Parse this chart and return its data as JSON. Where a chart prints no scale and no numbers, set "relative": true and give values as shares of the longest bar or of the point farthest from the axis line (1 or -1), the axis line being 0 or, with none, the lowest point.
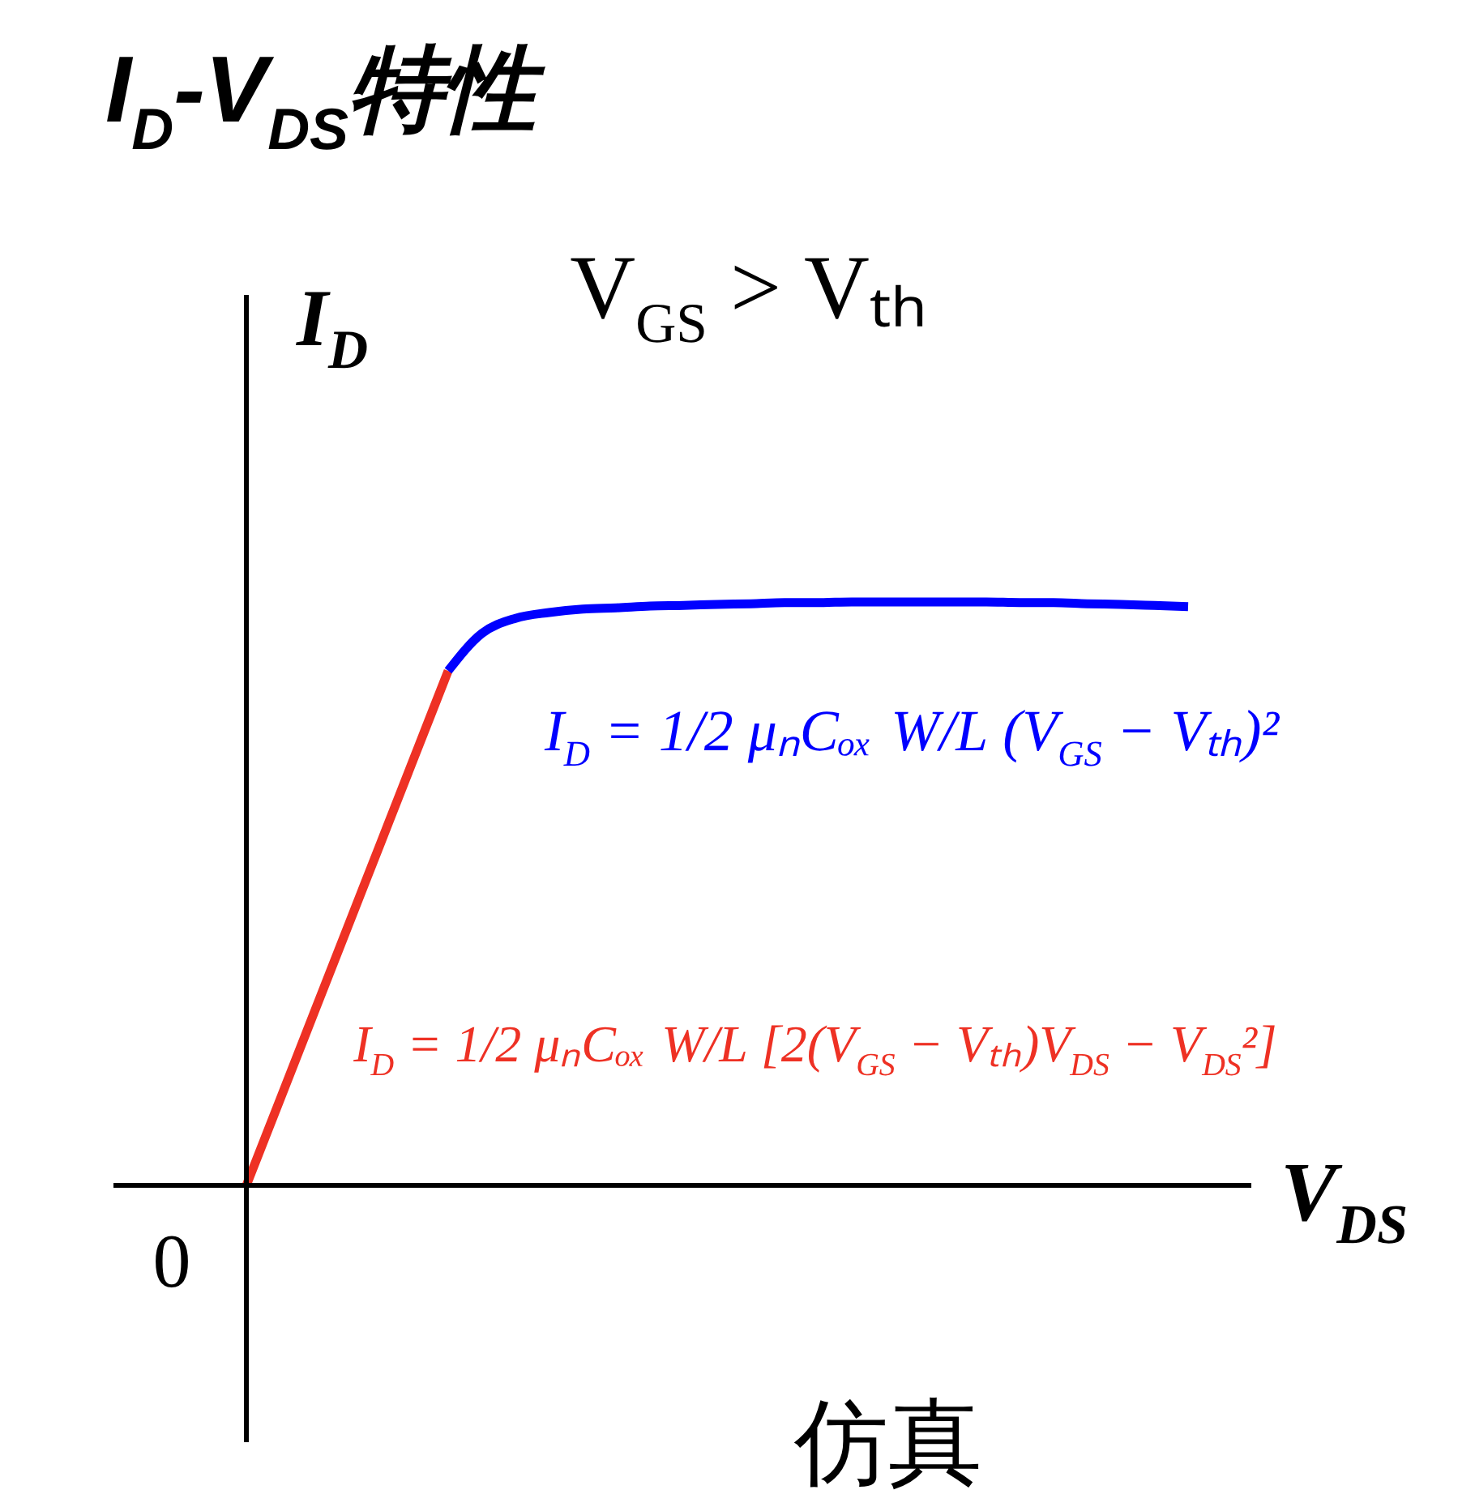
{
  "chart_data": {
    "type": "line",
    "title": "I$_{D}$-V$_{DS}$特性",
    "xlabel": "V$_{DS}$",
    "ylabel": "I$_{D}$",
    "relative": true,
    "categories": [
      null,
      null,
      null,
      null,
      null,
      null,
      null,
      null,
      null,
      null,
      null,
      null,
      null,
      null,
      null,
      null,
      null,
      null,
      null,
      null,
      null,
      null,
      null,
      null,
      null,
      null,
      null,
      null,
      null
    ],
    "series": [
      {
        "color": "#ee3124",
        "values": [
          0,
          0.147,
          0.294,
          0.441,
          0.588,
          0.735,
          0.882,
          null,
          null,
          null,
          null,
          null,
          null,
          null,
          null,
          null,
          null,
          null,
          null,
          null,
          null,
          null,
          null,
          null,
          null,
          null,
          null,
          null,
          null
        ]
      },
      {
        "color": "#0000ff",
        "values": [
          null,
          null,
          null,
          null,
          null,
          null,
          0.882,
          0.946,
          0.972,
          0.982,
          0.988,
          0.99,
          0.993,
          0.994,
          0.996,
          0.997,
          0.999,
          0.999,
          1.0,
          1.0,
          1.0,
          1.0,
          1.0,
          0.999,
          0.999,
          0.997,
          0.996,
          0.994,
          0.992
        ]
      }
    ],
    "annotations": [
      "V$_{GS}$ > Vₜₕ",
      "I$_{D}$ = 1/2 μₙCₒₓ W/L (V$_{GS}$ − Vₜₕ)²",
      "I$_{D}$ = 1/2 μₙCₒₓ W/L [2(V$_{GS}$ − Vₜₕ)V$_{DS}$ − V$_{DS}$²]",
      "0",
      "仿真"
    ],
    "line_style": "solid"
  }
}
